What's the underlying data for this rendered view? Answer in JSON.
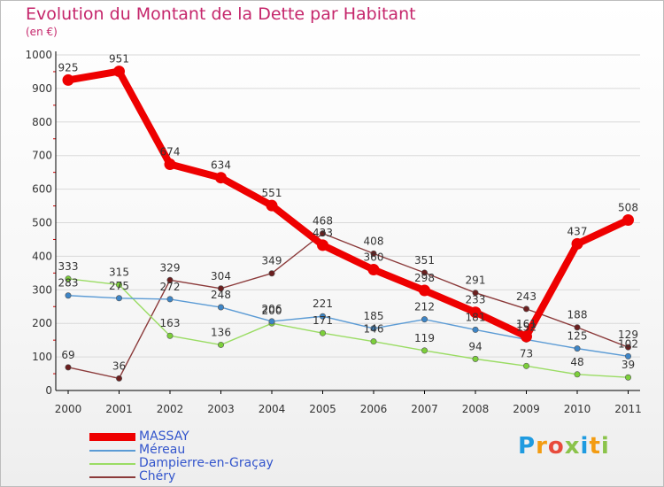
{
  "colors": {
    "title": "#c5266b",
    "axis_text": "#333333",
    "grid": "#d9d9d9",
    "axis_line": "#000000",
    "tick_red": "#cc0000",
    "label": "#333333",
    "legend_text": "#3355cc"
  },
  "chart_data": {
    "type": "line",
    "title": "Evolution du Montant de la Dette par Habitant",
    "subtitle": "(en €)",
    "xlabel": "",
    "ylabel": "",
    "ylim": [
      0,
      1000
    ],
    "yticks": [
      0,
      100,
      200,
      300,
      400,
      500,
      600,
      700,
      800,
      900,
      1000
    ],
    "grid": true,
    "legend_position": "bottom-left",
    "categories": [
      "2000",
      "2001",
      "2002",
      "2003",
      "2004",
      "2005",
      "2006",
      "2007",
      "2008",
      "2009",
      "2010",
      "2011"
    ],
    "series": [
      {
        "name": "MASSAY",
        "color": "#ee0000",
        "emphasis": true,
        "values": [
          925,
          951,
          674,
          634,
          551,
          433,
          360,
          298,
          233,
          161,
          437,
          508
        ],
        "labels": [
          "925",
          "951",
          "674",
          "634",
          "551",
          "433",
          "360",
          "298",
          "233",
          "161",
          "437",
          "508"
        ]
      },
      {
        "name": "Méreau",
        "color": "#5b9bd5",
        "marker_color": "#3d85c6",
        "values": [
          283,
          275,
          272,
          248,
          206,
          221,
          185,
          212,
          181,
          152,
          125,
          102
        ],
        "labels": [
          "283",
          "275",
          "272",
          "248",
          "206",
          "221",
          "185",
          "212",
          "181",
          "152",
          "125",
          "102"
        ]
      },
      {
        "name": "Dampierre-en-Graçay",
        "color": "#9adc63",
        "marker_color": "#7ccf3a",
        "values": [
          333,
          315,
          163,
          136,
          200,
          171,
          146,
          119,
          94,
          73,
          48,
          39
        ],
        "labels": [
          "333",
          "315",
          "163",
          "136",
          "200",
          "171",
          "146",
          "119",
          "94",
          "73",
          "48",
          "39"
        ]
      },
      {
        "name": "Chéry",
        "color": "#8b3a3a",
        "marker_color": "#6b1f1f",
        "values": [
          69,
          36,
          329,
          304,
          349,
          468,
          408,
          351,
          291,
          243,
          188,
          129
        ],
        "labels": [
          "69",
          "36",
          "329",
          "304",
          "349",
          "468",
          "408",
          "351",
          "291",
          "243",
          "188",
          "129"
        ]
      }
    ]
  },
  "logo": {
    "letters": [
      "P",
      "r",
      "o",
      "x",
      "i",
      "t",
      "i"
    ],
    "colors": [
      "#1f9be0",
      "#f39c12",
      "#e84b3c",
      "#8bc34a",
      "#1f9be0",
      "#f39c12",
      "#8bc34a"
    ]
  }
}
